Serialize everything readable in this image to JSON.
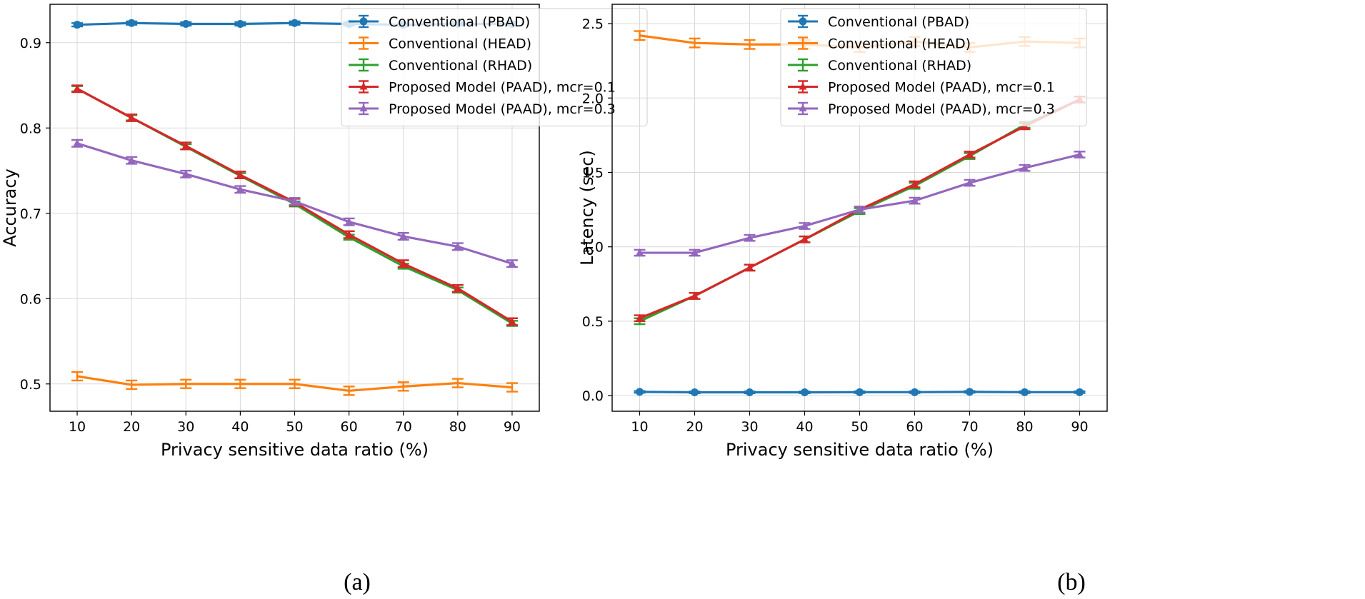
{
  "figure": {
    "panels": [
      "(a)",
      "(b)"
    ]
  },
  "chart_data": [
    {
      "type": "line",
      "panel": "(a)",
      "title": "",
      "xlabel": "Privacy sensitive data ratio (%)",
      "ylabel": "Accuracy",
      "x": [
        10,
        20,
        30,
        40,
        50,
        60,
        70,
        80,
        90
      ],
      "xlim": [
        5,
        95
      ],
      "ylim": [
        0.468,
        0.945
      ],
      "xticks": [
        10,
        20,
        30,
        40,
        50,
        60,
        70,
        80,
        90
      ],
      "yticks": [
        0.5,
        0.6,
        0.7,
        0.8,
        0.9
      ],
      "ytick_labels": [
        "0.5",
        "0.6",
        "0.7",
        "0.8",
        "0.9"
      ],
      "grid": true,
      "legend_position": "top-right",
      "series": [
        {
          "name": "Conventional (PBAD)",
          "color": "#1f77b4",
          "marker": "circle",
          "values": [
            0.921,
            0.923,
            0.922,
            0.922,
            0.923,
            0.922,
            0.921,
            0.922,
            0.922
          ],
          "errors": [
            0.002,
            0.002,
            0.002,
            0.002,
            0.002,
            0.002,
            0.002,
            0.002,
            0.002
          ]
        },
        {
          "name": "Conventional (HEAD)",
          "color": "#ff7f0e",
          "marker": "none",
          "values": [
            0.509,
            0.499,
            0.5,
            0.5,
            0.5,
            0.492,
            0.497,
            0.501,
            0.496
          ],
          "errors": [
            0.005,
            0.005,
            0.005,
            0.005,
            0.005,
            0.005,
            0.005,
            0.005,
            0.005
          ]
        },
        {
          "name": "Conventional (RHAD)",
          "color": "#2ca02c",
          "marker": "none",
          "values": [
            0.846,
            0.812,
            0.778,
            0.744,
            0.711,
            0.672,
            0.638,
            0.61,
            0.571
          ],
          "errors": [
            0.003,
            0.003,
            0.003,
            0.003,
            0.003,
            0.003,
            0.003,
            0.003,
            0.003
          ]
        },
        {
          "name": "Proposed Model (PAAD), mcr=0.1",
          "color": "#d62728",
          "marker": "triangle",
          "values": [
            0.846,
            0.812,
            0.779,
            0.745,
            0.713,
            0.675,
            0.641,
            0.612,
            0.573
          ],
          "errors": [
            0.004,
            0.004,
            0.004,
            0.004,
            0.004,
            0.004,
            0.004,
            0.004,
            0.004
          ]
        },
        {
          "name": "Proposed Model (PAAD), mcr=0.3",
          "color": "#9467bd",
          "marker": "triangle",
          "values": [
            0.782,
            0.762,
            0.746,
            0.728,
            0.714,
            0.69,
            0.673,
            0.661,
            0.641
          ],
          "errors": [
            0.004,
            0.004,
            0.004,
            0.004,
            0.004,
            0.004,
            0.004,
            0.004,
            0.004
          ]
        }
      ]
    },
    {
      "type": "line",
      "panel": "(b)",
      "title": "",
      "xlabel": "Privacy sensitive data ratio (%)",
      "ylabel": "Latency (sec)",
      "x": [
        10,
        20,
        30,
        40,
        50,
        60,
        70,
        80,
        90
      ],
      "xlim": [
        5,
        95
      ],
      "ylim": [
        -0.105,
        2.63
      ],
      "xticks": [
        10,
        20,
        30,
        40,
        50,
        60,
        70,
        80,
        90
      ],
      "yticks": [
        0.0,
        0.5,
        1.0,
        1.5,
        2.0,
        2.5
      ],
      "ytick_labels": [
        "0.0",
        "0.5",
        "1.0",
        "1.5",
        "2.0",
        "2.5"
      ],
      "grid": true,
      "legend_position": "top-left",
      "series": [
        {
          "name": "Conventional (PBAD)",
          "color": "#1f77b4",
          "marker": "circle",
          "values": [
            0.025,
            0.022,
            0.022,
            0.022,
            0.023,
            0.023,
            0.025,
            0.023,
            0.023
          ],
          "errors": [
            0.006,
            0.006,
            0.006,
            0.006,
            0.006,
            0.006,
            0.006,
            0.006,
            0.006
          ]
        },
        {
          "name": "Conventional (HEAD)",
          "color": "#ff7f0e",
          "marker": "none",
          "values": [
            2.42,
            2.37,
            2.36,
            2.36,
            2.34,
            2.38,
            2.34,
            2.38,
            2.37
          ],
          "errors": [
            0.03,
            0.03,
            0.03,
            0.03,
            0.03,
            0.03,
            0.03,
            0.03,
            0.03
          ]
        },
        {
          "name": "Conventional (RHAD)",
          "color": "#2ca02c",
          "marker": "none",
          "values": [
            0.5,
            0.67,
            0.86,
            1.05,
            1.24,
            1.41,
            1.61,
            1.82,
            1.99
          ],
          "errors": [
            0.02,
            0.02,
            0.02,
            0.02,
            0.02,
            0.02,
            0.02,
            0.02,
            0.02
          ]
        },
        {
          "name": "Proposed Model (PAAD), mcr=0.1",
          "color": "#d62728",
          "marker": "triangle",
          "values": [
            0.52,
            0.67,
            0.86,
            1.05,
            1.25,
            1.42,
            1.62,
            1.81,
            1.99
          ],
          "errors": [
            0.02,
            0.02,
            0.02,
            0.02,
            0.02,
            0.02,
            0.02,
            0.02,
            0.02
          ]
        },
        {
          "name": "Proposed Model (PAAD), mcr=0.3",
          "color": "#9467bd",
          "marker": "triangle",
          "values": [
            0.96,
            0.96,
            1.06,
            1.14,
            1.25,
            1.31,
            1.43,
            1.53,
            1.62
          ],
          "errors": [
            0.02,
            0.02,
            0.02,
            0.02,
            0.02,
            0.02,
            0.02,
            0.02,
            0.02
          ]
        }
      ]
    }
  ]
}
